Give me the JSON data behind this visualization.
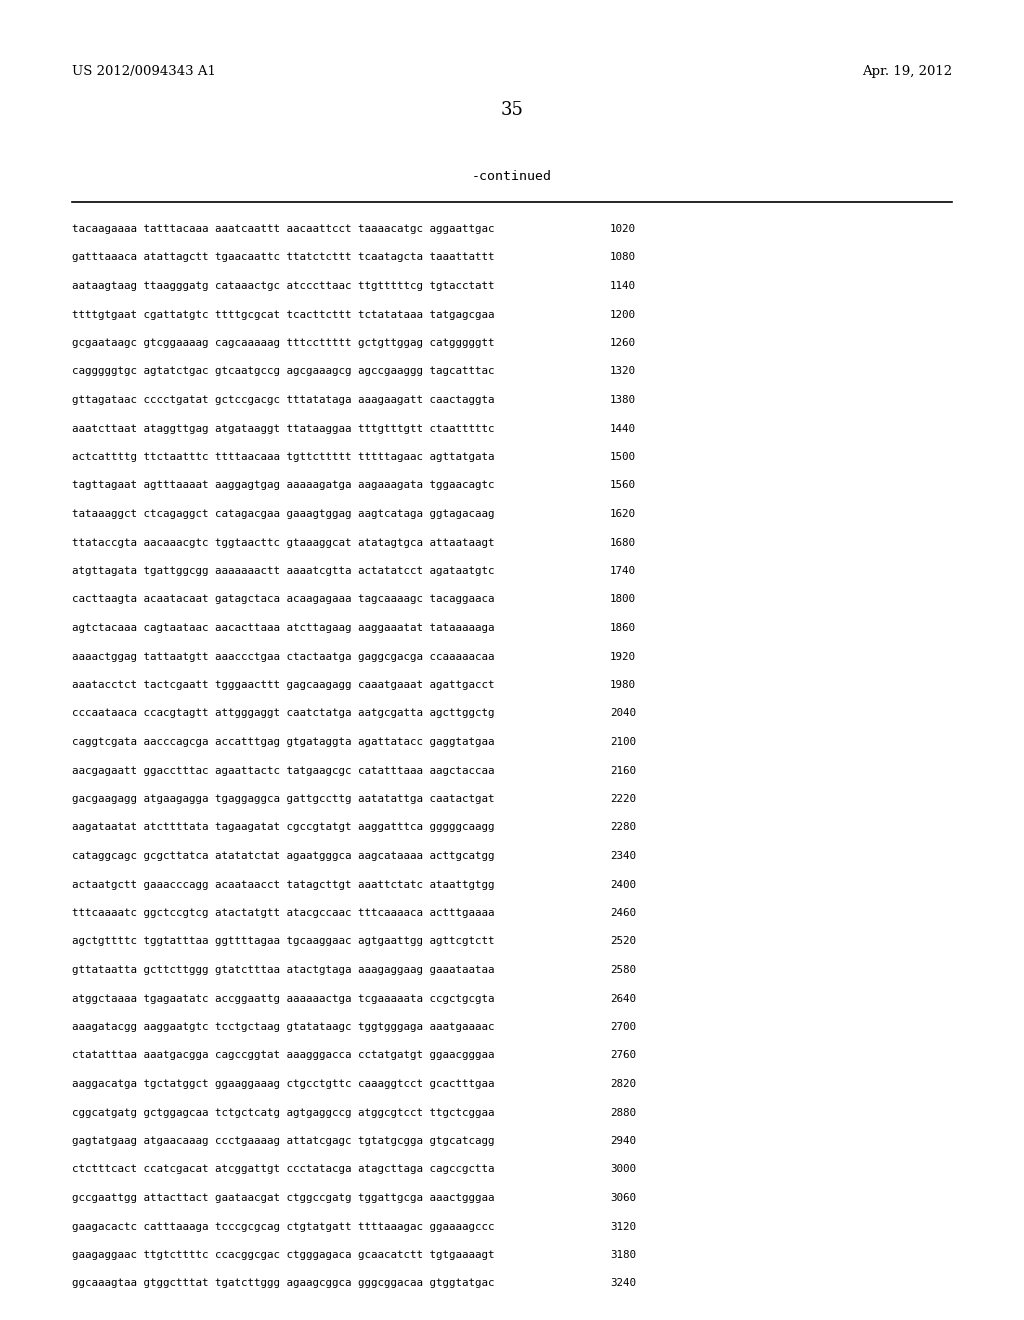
{
  "header_left": "US 2012/0094343 A1",
  "header_right": "Apr. 19, 2012",
  "page_number": "35",
  "continued_label": "-continued",
  "background_color": "#ffffff",
  "text_color": "#000000",
  "sequence_lines": [
    [
      "tacaagaaaa tatttacaaa aaatcaattt aacaattcct taaaacatgc aggaattgac",
      "1020"
    ],
    [
      "gatttaaaca atattagctt tgaacaattc ttatctcttt tcaatagcta taaattattt",
      "1080"
    ],
    [
      "aataagtaag ttaagggatg cataaactgc atcccttaac ttgtttttcg tgtacctatt",
      "1140"
    ],
    [
      "ttttgtgaat cgattatgtc ttttgcgcat tcacttcttt tctatataaa tatgagcgaa",
      "1200"
    ],
    [
      "gcgaataagc gtcggaaaag cagcaaaaag tttccttttt gctgttggag catgggggtt",
      "1260"
    ],
    [
      "cagggggtgc agtatctgac gtcaatgccg agcgaaagcg agccgaaggg tagcatttac",
      "1320"
    ],
    [
      "gttagataac cccctgatat gctccgacgc tttatataga aaagaagatt caactaggta",
      "1380"
    ],
    [
      "aaatcttaat ataggttgag atgataaggt ttataaggaa tttgtttgtt ctaatttttc",
      "1440"
    ],
    [
      "actcattttg ttctaatttc ttttaacaaa tgttcttttt tttttagaac agttatgata",
      "1500"
    ],
    [
      "tagttagaat agtttaaaat aaggagtgag aaaaagatga aagaaagata tggaacagtc",
      "1560"
    ],
    [
      "tataaaggct ctcagaggct catagacgaa gaaagtggag aagtcataga ggtagacaag",
      "1620"
    ],
    [
      "ttataccgta aacaaacgtc tggtaacttc gtaaaggcat atatagtgca attaataagt",
      "1680"
    ],
    [
      "atgttagata tgattggcgg aaaaaaactt aaaatcgtta actatatcct agataatgtc",
      "1740"
    ],
    [
      "cacttaagta acaatacaat gatagctaca acaagagaaa tagcaaaagc tacaggaaca",
      "1800"
    ],
    [
      "agtctacaaa cagtaataac aacacttaaa atcttagaag aaggaaatat tataaaaaga",
      "1860"
    ],
    [
      "aaaactggag tattaatgtt aaaccctgaa ctactaatga gaggcgacga ccaaaaacaa",
      "1920"
    ],
    [
      "aaatacctct tactcgaatt tgggaacttt gagcaagagg caaatgaaat agattgacct",
      "1980"
    ],
    [
      "cccaataaca ccacgtagtt attgggaggt caatctatga aatgcgatta agcttggctg",
      "2040"
    ],
    [
      "caggtcgata aacccagcga accatttgag gtgataggta agattatacc gaggtatgaa",
      "2100"
    ],
    [
      "aacgagaatt ggacctttac agaattactc tatgaagcgc catatttaaa aagctaccaa",
      "2160"
    ],
    [
      "gacgaagagg atgaagagga tgaggaggca gattgccttg aatatattga caatactgat",
      "2220"
    ],
    [
      "aagataatat atcttttata tagaagatat cgccgtatgt aaggatttca gggggcaagg",
      "2280"
    ],
    [
      "cataggcagc gcgcttatca atatatctat agaatgggca aagcataaaa acttgcatgg",
      "2340"
    ],
    [
      "actaatgctt gaaacccagg acaataacct tatagcttgt aaattctatc ataattgtgg",
      "2400"
    ],
    [
      "tttcaaaatc ggctccgtcg atactatgtt atacgccaac tttcaaaaca actttgaaaa",
      "2460"
    ],
    [
      "agctgttttc tggtatttaa ggttttagaa tgcaaggaac agtgaattgg agttcgtctt",
      "2520"
    ],
    [
      "gttataatta gcttcttggg gtatctttaa atactgtaga aaagaggaag gaaataataa",
      "2580"
    ],
    [
      "atggctaaaa tgagaatatc accggaattg aaaaaactga tcgaaaaata ccgctgcgta",
      "2640"
    ],
    [
      "aaagatacgg aaggaatgtc tcctgctaag gtatataagc tggtgggaga aaatgaaaac",
      "2700"
    ],
    [
      "ctatatttaa aaatgacgga cagccggtat aaagggacca cctatgatgt ggaacgggaa",
      "2760"
    ],
    [
      "aaggacatga tgctatggct ggaaggaaag ctgcctgttc caaaggtcct gcactttgaa",
      "2820"
    ],
    [
      "cggcatgatg gctggagcaa tctgctcatg agtgaggccg atggcgtcct ttgctcggaa",
      "2880"
    ],
    [
      "gagtatgaag atgaacaaag ccctgaaaag attatcgagc tgtatgcgga gtgcatcagg",
      "2940"
    ],
    [
      "ctctttcact ccatcgacat atcggattgt ccctatacga atagcttaga cagccgctta",
      "3000"
    ],
    [
      "gccgaattgg attacttact gaataacgat ctggccgatg tggattgcga aaactgggaa",
      "3060"
    ],
    [
      "gaagacactc catttaaaga tcccgcgcag ctgtatgatt ttttaaagac ggaaaagccc",
      "3120"
    ],
    [
      "gaagaggaac ttgtcttttc ccacggcgac ctgggagaca gcaacatctt tgtgaaaagt",
      "3180"
    ],
    [
      "ggcaaagtaa gtggctttat tgatcttggg agaagcggca gggcggacaa gtggtatgac",
      "3240"
    ]
  ],
  "header_fontsize": 9.5,
  "page_num_fontsize": 13,
  "continued_fontsize": 9.5,
  "seq_fontsize": 7.8,
  "num_fontsize": 7.8
}
